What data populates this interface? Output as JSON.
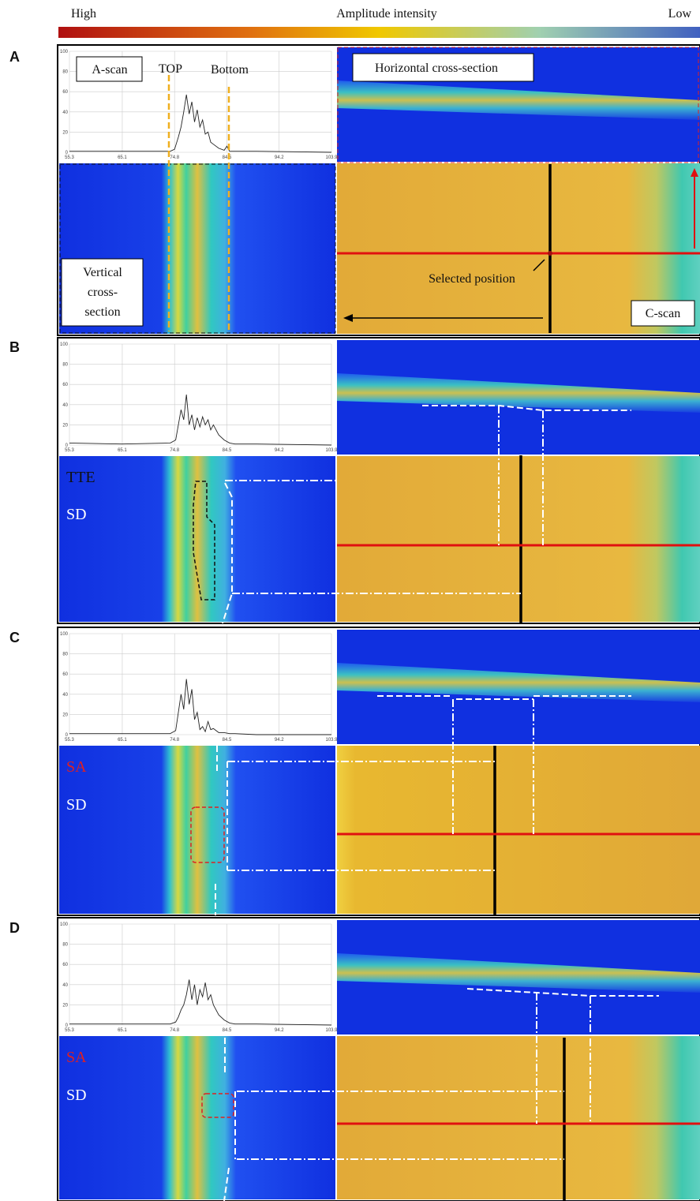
{
  "colorbar": {
    "high": "High",
    "title": "Amplitude intensity",
    "low": "Low"
  },
  "panels": [
    {
      "letter": "A",
      "ascan": {
        "type": "line",
        "xlim": [
          55.3,
          103.9
        ],
        "ylim": [
          0,
          100
        ],
        "xticks": [
          55.3,
          65.1,
          74.8,
          84.5,
          94.2,
          103.9
        ],
        "yticks": [
          0,
          20,
          40,
          60,
          80,
          100
        ],
        "x": [
          55.3,
          65,
          74,
          74.8,
          75.5,
          76,
          76.5,
          77,
          77.5,
          78,
          78.5,
          79,
          79.5,
          80,
          80.5,
          81,
          81.5,
          82,
          83,
          84,
          84.5,
          85,
          90,
          103.9
        ],
        "values": [
          1,
          1,
          1,
          3,
          15,
          25,
          40,
          57,
          38,
          50,
          30,
          42,
          25,
          32,
          18,
          20,
          10,
          8,
          4,
          2,
          6,
          1,
          1,
          0
        ]
      },
      "labels": {
        "ascan": "A-scan",
        "top": "TOP",
        "bottom": "Bottom",
        "horizontal": "Horizontal cross-section",
        "vertical": [
          "Vertical",
          "cross-",
          "section"
        ],
        "selected": "Selected position",
        "cscan": "C-scan"
      }
    },
    {
      "letter": "B",
      "ascan": {
        "type": "line",
        "xlim": [
          55.3,
          103.9
        ],
        "ylim": [
          0,
          100
        ],
        "xticks": [
          55.3,
          65.1,
          74.8,
          84.5,
          94.2,
          103.9
        ],
        "yticks": [
          0,
          20,
          40,
          60,
          80,
          100
        ],
        "x": [
          55.3,
          65,
          74,
          75,
          75.5,
          76,
          76.5,
          77,
          77.5,
          78,
          78.5,
          79,
          79.5,
          80,
          80.5,
          81,
          81.5,
          82,
          83,
          84,
          85,
          86,
          90,
          103.9
        ],
        "values": [
          2,
          1,
          2,
          5,
          20,
          35,
          25,
          50,
          20,
          30,
          15,
          27,
          18,
          28,
          20,
          25,
          15,
          20,
          10,
          5,
          2,
          1,
          1,
          0
        ]
      },
      "labels": {
        "first": "TTE",
        "second": "SD"
      }
    },
    {
      "letter": "C",
      "ascan": {
        "type": "line",
        "xlim": [
          55.3,
          103.9
        ],
        "ylim": [
          0,
          100
        ],
        "xticks": [
          55.3,
          65.1,
          74.8,
          84.5,
          94.2,
          103.9
        ],
        "yticks": [
          0,
          20,
          40,
          60,
          80,
          100
        ],
        "x": [
          55.3,
          65,
          74,
          75,
          75.5,
          76,
          76.5,
          77,
          77.5,
          78,
          78.5,
          79,
          79.5,
          80,
          80.5,
          81,
          81.5,
          82,
          83,
          84,
          85,
          86,
          90,
          103.9
        ],
        "values": [
          1,
          1,
          1,
          4,
          22,
          40,
          25,
          55,
          30,
          45,
          15,
          22,
          5,
          8,
          3,
          13,
          5,
          6,
          2,
          2,
          1,
          1,
          0,
          0
        ]
      },
      "labels": {
        "first": "SA",
        "second": "SD"
      }
    },
    {
      "letter": "D",
      "ascan": {
        "type": "line",
        "xlim": [
          55.3,
          103.9
        ],
        "ylim": [
          0,
          100
        ],
        "xticks": [
          55.3,
          65.1,
          74.8,
          84.5,
          94.2,
          103.9
        ],
        "yticks": [
          0,
          20,
          40,
          60,
          80,
          100
        ],
        "x": [
          55.3,
          65,
          74,
          75,
          75.5,
          76,
          76.5,
          77,
          77.5,
          78,
          78.5,
          79,
          79.5,
          80,
          80.5,
          81,
          81.5,
          82,
          83,
          84,
          85,
          86,
          90,
          103.9
        ],
        "values": [
          1,
          1,
          1,
          3,
          8,
          15,
          20,
          30,
          45,
          25,
          40,
          20,
          35,
          28,
          42,
          25,
          30,
          20,
          10,
          5,
          2,
          1,
          1,
          0
        ]
      },
      "labels": {
        "first": "SA",
        "second": "SD"
      }
    }
  ]
}
